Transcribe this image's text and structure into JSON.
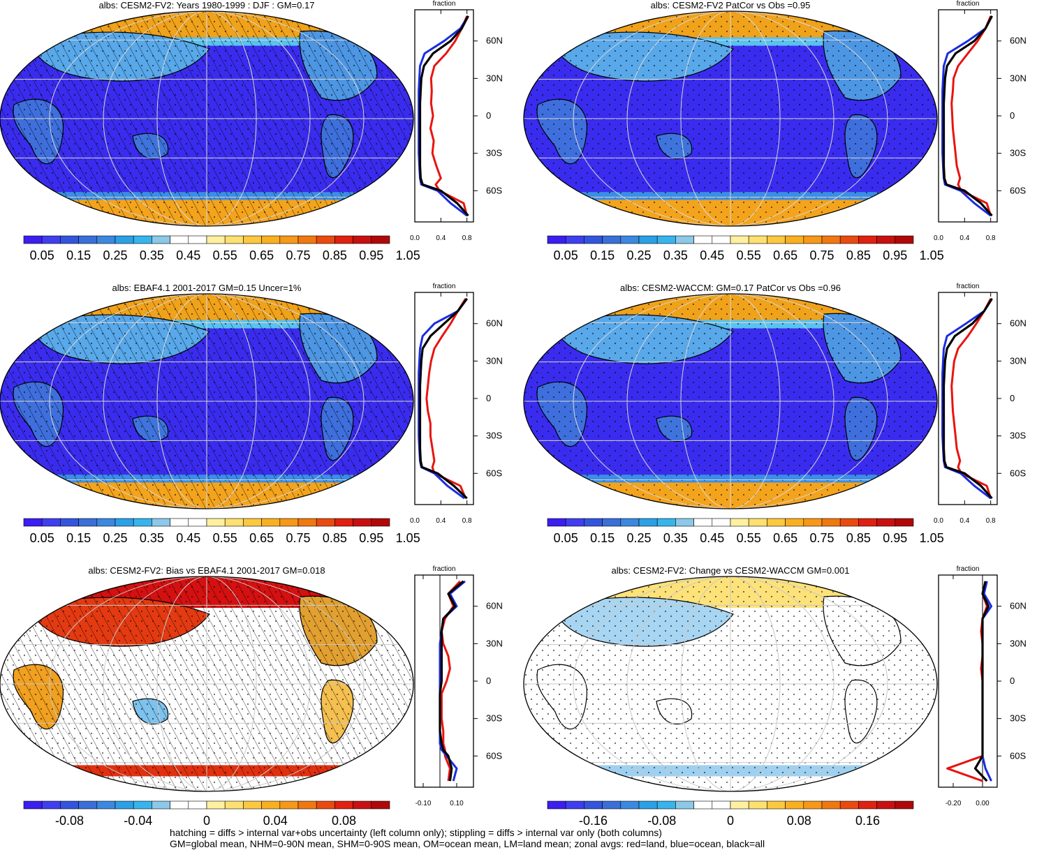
{
  "panels": [
    {
      "title": "albs: CESM2-FV2: Years 1980-1999 : DJF : GM=0.17",
      "kind": "abs",
      "hatch": true,
      "colorbar": {
        "labels": [
          "0.05",
          "0.15",
          "0.25",
          "0.35",
          "0.45",
          "0.55",
          "0.65",
          "0.75",
          "0.85",
          "0.95",
          "1.05"
        ],
        "palette": "abs"
      },
      "profile": {
        "label": "fraction",
        "ticks": [
          "0.0",
          "0.4",
          "0.8"
        ],
        "xlim": [
          0,
          0.9
        ],
        "zero_line": false
      },
      "lat_labels": [
        "60N",
        "30N",
        "0",
        "30S",
        "60S"
      ]
    },
    {
      "title": "albs: CESM2-FV2 PatCor vs Obs =0.95",
      "kind": "abs",
      "hatch": false,
      "colorbar": {
        "labels": [
          "0.05",
          "0.15",
          "0.25",
          "0.35",
          "0.45",
          "0.55",
          "0.65",
          "0.75",
          "0.85",
          "0.95",
          "1.05"
        ],
        "palette": "abs"
      },
      "profile": {
        "label": "fraction",
        "ticks": [
          "0.0",
          "0.4",
          "0.8"
        ],
        "xlim": [
          0,
          0.9
        ],
        "zero_line": false
      },
      "lat_labels": [
        "60N",
        "30N",
        "0",
        "30S",
        "60S"
      ]
    },
    {
      "title": "albs: EBAF4.1 2001-2017 GM=0.15 Uncer=1%",
      "kind": "abs",
      "hatch": true,
      "colorbar": {
        "labels": [
          "0.05",
          "0.15",
          "0.25",
          "0.35",
          "0.45",
          "0.55",
          "0.65",
          "0.75",
          "0.85",
          "0.95",
          "1.05"
        ],
        "palette": "abs"
      },
      "profile": {
        "label": "fraction",
        "ticks": [
          "0.0",
          "0.4",
          "0.8"
        ],
        "xlim": [
          0,
          0.9
        ],
        "zero_line": false
      },
      "lat_labels": [
        "60N",
        "30N",
        "0",
        "30S",
        "60S"
      ]
    },
    {
      "title": "albs: CESM2-WACCM: GM=0.17 PatCor vs Obs =0.96",
      "kind": "abs",
      "hatch": false,
      "colorbar": {
        "labels": [
          "0.05",
          "0.15",
          "0.25",
          "0.35",
          "0.45",
          "0.55",
          "0.65",
          "0.75",
          "0.85",
          "0.95",
          "1.05"
        ],
        "palette": "abs"
      },
      "profile": {
        "label": "fraction",
        "ticks": [
          "0.0",
          "0.4",
          "0.8"
        ],
        "xlim": [
          0,
          0.9
        ],
        "zero_line": false
      },
      "lat_labels": [
        "60N",
        "30N",
        "0",
        "30S",
        "60S"
      ]
    },
    {
      "title": "albs: CESM2-FV2: Bias vs EBAF4.1 2001-2017 GM=0.018",
      "kind": "diff",
      "hatch": true,
      "colorbar": {
        "labels": [
          "-0.08",
          "-0.04",
          "0",
          "0.04",
          "0.08"
        ],
        "palette": "diff"
      },
      "profile": {
        "label": "fraction",
        "ticks": [
          "-0.10",
          "0.10"
        ],
        "xlim": [
          -0.15,
          0.2
        ],
        "zero_line": true
      },
      "lat_labels": [
        "60N",
        "30N",
        "0",
        "30S",
        "60S"
      ]
    },
    {
      "title": "albs: CESM2-FV2: Change vs CESM2-WACCM GM=0.001",
      "kind": "diff",
      "hatch": false,
      "colorbar": {
        "labels": [
          "-0.16",
          "-0.08",
          "0",
          "0.08",
          "0.16"
        ],
        "palette": "diff"
      },
      "profile": {
        "label": "fraction",
        "ticks": [
          "-0.20",
          "0.00"
        ],
        "xlim": [
          -0.3,
          0.1
        ],
        "zero_line": true
      },
      "lat_labels": [
        "60N",
        "30N",
        "0",
        "30S",
        "60S"
      ]
    }
  ],
  "colors": {
    "abs_palette": [
      "#3b1ef0",
      "#3f3fef",
      "#3355dd",
      "#3a6fd8",
      "#3b88e0",
      "#2ba0e6",
      "#37b4ee",
      "#8cc8e8",
      "#ffffff",
      "#ffffff",
      "#fff0a0",
      "#fde070",
      "#fcc840",
      "#f9b020",
      "#f69818",
      "#f07810",
      "#ea4a10",
      "#e02010",
      "#c81010",
      "#b00808"
    ],
    "diff_palette": [
      "#3b1ef0",
      "#3f3fef",
      "#3355dd",
      "#3a6fd8",
      "#3b88e0",
      "#2ba0e6",
      "#37b4ee",
      "#8cc8e8",
      "#ffffff",
      "#ffffff",
      "#fff0a0",
      "#fde070",
      "#fcc840",
      "#f9b020",
      "#f69818",
      "#f07810",
      "#ea4a10",
      "#e02010",
      "#c81010",
      "#b00808"
    ],
    "land_profile": "#e8140f",
    "ocean_profile": "#1a2ce0",
    "all_profile": "#000000"
  },
  "footer": {
    "line1": "hatching = diffs > internal var+obs uncertainty (left column only); stippling = diffs > internal var only (both columns)",
    "line2": "GM=global mean, NHM=0-90N mean, SHM=0-90S mean, OM=ocean mean, LM=land mean; zonal avgs: red=land, blue=ocean, black=all"
  },
  "chart_data": [
    {
      "type": "line",
      "title": "albs: CESM2-FV2: Years 1980-1999 : DJF : GM=0.17",
      "xlabel": "fraction",
      "ylabel": "",
      "xlim": [
        0,
        0.9
      ],
      "ylim": [
        -85,
        85
      ],
      "series": [
        {
          "name": "land",
          "x": [
            0.8,
            0.72,
            0.62,
            0.48,
            0.3,
            0.25,
            0.26,
            0.25,
            0.28,
            0.24,
            0.29,
            0.27,
            0.33,
            0.4,
            0.32,
            0.38,
            0.75,
            0.8
          ],
          "y": [
            80,
            70,
            60,
            50,
            40,
            30,
            20,
            10,
            0,
            -10,
            -20,
            -30,
            -40,
            -50,
            -55,
            -60,
            -70,
            -80
          ]
        },
        {
          "name": "ocean",
          "x": [
            0.82,
            0.7,
            0.45,
            0.15,
            0.08,
            0.07,
            0.06,
            0.06,
            0.06,
            0.06,
            0.06,
            0.06,
            0.07,
            0.08,
            0.1,
            0.35,
            0.55,
            0.8
          ],
          "y": [
            80,
            70,
            60,
            50,
            40,
            30,
            20,
            10,
            0,
            -10,
            -20,
            -30,
            -40,
            -50,
            -55,
            -60,
            -70,
            -80
          ]
        },
        {
          "name": "all",
          "x": [
            0.82,
            0.72,
            0.55,
            0.28,
            0.14,
            0.1,
            0.09,
            0.08,
            0.08,
            0.08,
            0.08,
            0.08,
            0.08,
            0.09,
            0.12,
            0.4,
            0.65,
            0.82
          ],
          "y": [
            80,
            70,
            60,
            50,
            40,
            30,
            20,
            10,
            0,
            -10,
            -20,
            -30,
            -40,
            -50,
            -55,
            -60,
            -70,
            -80
          ]
        }
      ]
    },
    {
      "type": "line",
      "title": "albs: CESM2-FV2 PatCor vs Obs =0.95",
      "xlabel": "fraction",
      "ylabel": "",
      "xlim": [
        0,
        0.9
      ],
      "ylim": [
        -85,
        85
      ],
      "series": [
        {
          "name": "land",
          "x": [
            0.8,
            0.72,
            0.6,
            0.45,
            0.3,
            0.23,
            0.22,
            0.2,
            0.21,
            0.22,
            0.24,
            0.26,
            0.28,
            0.33,
            0.3,
            0.35,
            0.74,
            0.8
          ],
          "y": [
            80,
            70,
            60,
            50,
            40,
            30,
            20,
            10,
            0,
            -10,
            -20,
            -30,
            -40,
            -50,
            -55,
            -60,
            -70,
            -80
          ]
        },
        {
          "name": "ocean",
          "x": [
            0.82,
            0.72,
            0.45,
            0.14,
            0.08,
            0.07,
            0.06,
            0.06,
            0.06,
            0.06,
            0.06,
            0.06,
            0.07,
            0.08,
            0.1,
            0.34,
            0.55,
            0.8
          ],
          "y": [
            80,
            70,
            60,
            50,
            40,
            30,
            20,
            10,
            0,
            -10,
            -20,
            -30,
            -40,
            -50,
            -55,
            -60,
            -70,
            -80
          ]
        },
        {
          "name": "all",
          "x": [
            0.82,
            0.72,
            0.55,
            0.26,
            0.13,
            0.1,
            0.09,
            0.08,
            0.08,
            0.08,
            0.08,
            0.08,
            0.08,
            0.09,
            0.12,
            0.4,
            0.65,
            0.82
          ],
          "y": [
            80,
            70,
            60,
            50,
            40,
            30,
            20,
            10,
            0,
            -10,
            -20,
            -30,
            -40,
            -50,
            -55,
            -60,
            -70,
            -80
          ]
        }
      ]
    },
    {
      "type": "line",
      "title": "albs: EBAF4.1 2001-2017 GM=0.15 Uncer=1%",
      "xlabel": "fraction",
      "ylabel": "",
      "xlim": [
        0,
        0.9
      ],
      "ylim": [
        -85,
        85
      ],
      "series": [
        {
          "name": "land",
          "x": [
            0.78,
            0.66,
            0.55,
            0.42,
            0.3,
            0.25,
            0.22,
            0.2,
            0.18,
            0.2,
            0.24,
            0.24,
            0.27,
            0.3,
            0.27,
            0.3,
            0.7,
            0.78
          ],
          "y": [
            80,
            70,
            60,
            50,
            40,
            30,
            20,
            10,
            0,
            -10,
            -20,
            -30,
            -40,
            -50,
            -55,
            -60,
            -70,
            -80
          ]
        },
        {
          "name": "ocean",
          "x": [
            0.8,
            0.66,
            0.3,
            0.12,
            0.08,
            0.07,
            0.06,
            0.06,
            0.06,
            0.06,
            0.06,
            0.06,
            0.07,
            0.08,
            0.1,
            0.3,
            0.5,
            0.76
          ],
          "y": [
            80,
            70,
            60,
            50,
            40,
            30,
            20,
            10,
            0,
            -10,
            -20,
            -30,
            -40,
            -50,
            -55,
            -60,
            -70,
            -80
          ]
        },
        {
          "name": "all",
          "x": [
            0.8,
            0.66,
            0.45,
            0.24,
            0.12,
            0.1,
            0.09,
            0.08,
            0.08,
            0.08,
            0.08,
            0.08,
            0.08,
            0.09,
            0.11,
            0.35,
            0.6,
            0.8
          ],
          "y": [
            80,
            70,
            60,
            50,
            40,
            30,
            20,
            10,
            0,
            -10,
            -20,
            -30,
            -40,
            -50,
            -55,
            -60,
            -70,
            -80
          ]
        }
      ]
    },
    {
      "type": "line",
      "title": "albs: CESM2-WACCM: GM=0.17 PatCor vs Obs =0.96",
      "xlabel": "fraction",
      "ylabel": "",
      "xlim": [
        0,
        0.9
      ],
      "ylim": [
        -85,
        85
      ],
      "series": [
        {
          "name": "land",
          "x": [
            0.8,
            0.7,
            0.58,
            0.45,
            0.3,
            0.24,
            0.22,
            0.2,
            0.21,
            0.22,
            0.24,
            0.26,
            0.28,
            0.33,
            0.3,
            0.35,
            0.74,
            0.8
          ],
          "y": [
            80,
            70,
            60,
            50,
            40,
            30,
            20,
            10,
            0,
            -10,
            -20,
            -30,
            -40,
            -50,
            -55,
            -60,
            -70,
            -80
          ]
        },
        {
          "name": "ocean",
          "x": [
            0.82,
            0.7,
            0.42,
            0.13,
            0.08,
            0.07,
            0.06,
            0.06,
            0.06,
            0.06,
            0.06,
            0.06,
            0.07,
            0.08,
            0.1,
            0.34,
            0.55,
            0.8
          ],
          "y": [
            80,
            70,
            60,
            50,
            40,
            30,
            20,
            10,
            0,
            -10,
            -20,
            -30,
            -40,
            -50,
            -55,
            -60,
            -70,
            -80
          ]
        },
        {
          "name": "all",
          "x": [
            0.82,
            0.7,
            0.52,
            0.25,
            0.13,
            0.1,
            0.09,
            0.08,
            0.08,
            0.08,
            0.08,
            0.08,
            0.08,
            0.09,
            0.12,
            0.4,
            0.65,
            0.82
          ],
          "y": [
            80,
            70,
            60,
            50,
            40,
            30,
            20,
            10,
            0,
            -10,
            -20,
            -30,
            -40,
            -50,
            -55,
            -60,
            -70,
            -80
          ]
        }
      ]
    },
    {
      "type": "line",
      "title": "albs: CESM2-FV2: Bias vs EBAF4.1 2001-2017 GM=0.018",
      "xlabel": "fraction",
      "ylabel": "",
      "xlim": [
        -0.15,
        0.2
      ],
      "ylim": [
        -85,
        85
      ],
      "series": [
        {
          "name": "land",
          "x": [
            0.12,
            0.05,
            0.08,
            0.03,
            0.01,
            0.02,
            0.05,
            0.06,
            0.04,
            0.01,
            0.01,
            0.01,
            0.02,
            0.02,
            0.03,
            0.03,
            0.06,
            0.05
          ],
          "y": [
            80,
            70,
            60,
            50,
            40,
            30,
            20,
            10,
            0,
            -10,
            -20,
            -30,
            -40,
            -50,
            -55,
            -60,
            -70,
            -80
          ]
        },
        {
          "name": "ocean",
          "x": [
            0.15,
            0.06,
            0.1,
            0.02,
            0.01,
            0.0,
            0.0,
            0.0,
            0.0,
            0.0,
            0.0,
            0.0,
            0.0,
            0.0,
            0.01,
            0.04,
            0.1,
            0.08
          ],
          "y": [
            80,
            70,
            60,
            50,
            40,
            30,
            20,
            10,
            0,
            -10,
            -20,
            -30,
            -40,
            -50,
            -55,
            -60,
            -70,
            -80
          ]
        },
        {
          "name": "all",
          "x": [
            0.14,
            0.05,
            0.09,
            0.02,
            0.01,
            0.01,
            0.01,
            0.01,
            0.01,
            0.0,
            0.0,
            0.0,
            0.0,
            0.01,
            0.02,
            0.05,
            0.07,
            0.06
          ],
          "y": [
            80,
            70,
            60,
            50,
            40,
            30,
            20,
            10,
            0,
            -10,
            -20,
            -30,
            -40,
            -50,
            -55,
            -60,
            -70,
            -80
          ]
        }
      ]
    },
    {
      "type": "line",
      "title": "albs: CESM2-FV2: Change vs CESM2-WACCM GM=0.001",
      "xlabel": "fraction",
      "ylabel": "",
      "xlim": [
        -0.3,
        0.1
      ],
      "ylim": [
        -85,
        85
      ],
      "series": [
        {
          "name": "land",
          "x": [
            0.02,
            0.0,
            0.03,
            0.0,
            -0.01,
            0.0,
            0.0,
            -0.01,
            0.0,
            0.0,
            0.0,
            0.0,
            0.0,
            0.0,
            0.0,
            0.0,
            -0.24,
            0.0
          ],
          "y": [
            80,
            70,
            60,
            50,
            40,
            30,
            20,
            10,
            0,
            -10,
            -20,
            -30,
            -40,
            -50,
            -55,
            -60,
            -70,
            -80
          ]
        },
        {
          "name": "ocean",
          "x": [
            0.03,
            0.01,
            0.06,
            0.0,
            0.0,
            0.0,
            0.0,
            0.0,
            0.0,
            0.0,
            0.0,
            0.0,
            0.0,
            0.0,
            0.0,
            0.0,
            0.02,
            0.06
          ],
          "y": [
            80,
            70,
            60,
            50,
            40,
            30,
            20,
            10,
            0,
            -10,
            -20,
            -30,
            -40,
            -50,
            -55,
            -60,
            -70,
            -80
          ]
        },
        {
          "name": "all",
          "x": [
            0.02,
            0.0,
            0.04,
            0.0,
            0.0,
            0.0,
            0.0,
            0.0,
            0.0,
            0.0,
            0.0,
            0.0,
            0.0,
            0.0,
            0.0,
            0.0,
            -0.05,
            0.03
          ],
          "y": [
            80,
            70,
            60,
            50,
            40,
            30,
            20,
            10,
            0,
            -10,
            -20,
            -30,
            -40,
            -50,
            -55,
            -60,
            -70,
            -80
          ]
        }
      ]
    }
  ]
}
